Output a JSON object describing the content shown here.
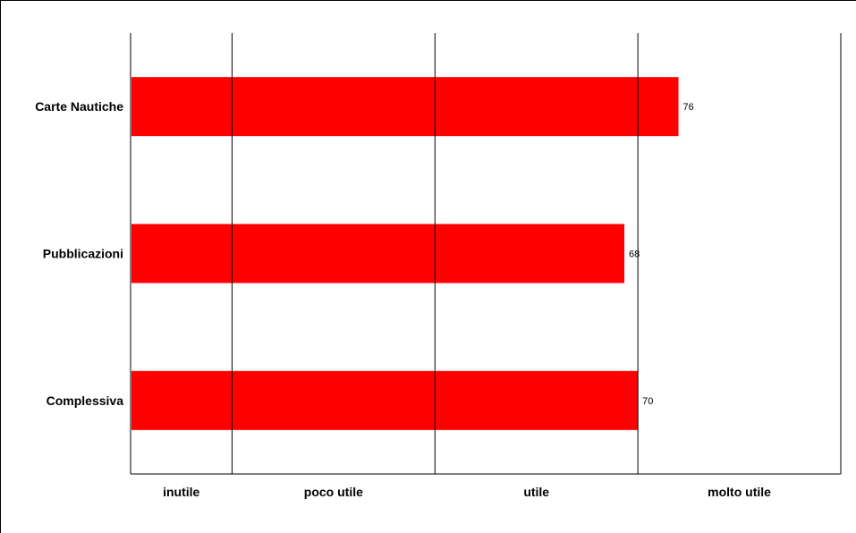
{
  "chart_data": {
    "type": "bar",
    "orientation": "horizontal",
    "title": "",
    "xlabel": "",
    "ylabel": "",
    "categories": [
      "Carte Nautiche",
      "Pubblicazioni",
      "Complessiva"
    ],
    "values": [
      76,
      68,
      70
    ],
    "data_labels": [
      "76",
      "68",
      "70"
    ],
    "xlim": [
      -5,
      100
    ],
    "bands": [
      {
        "label": "inutile",
        "from": -5,
        "to": 10
      },
      {
        "label": "poco utile",
        "from": 10,
        "to": 40
      },
      {
        "label": "utile",
        "from": 40,
        "to": 70
      },
      {
        "label": "molto utile",
        "from": 70,
        "to": 100
      }
    ],
    "grid": true,
    "legend": "none",
    "bar_color": "#ff0000"
  }
}
